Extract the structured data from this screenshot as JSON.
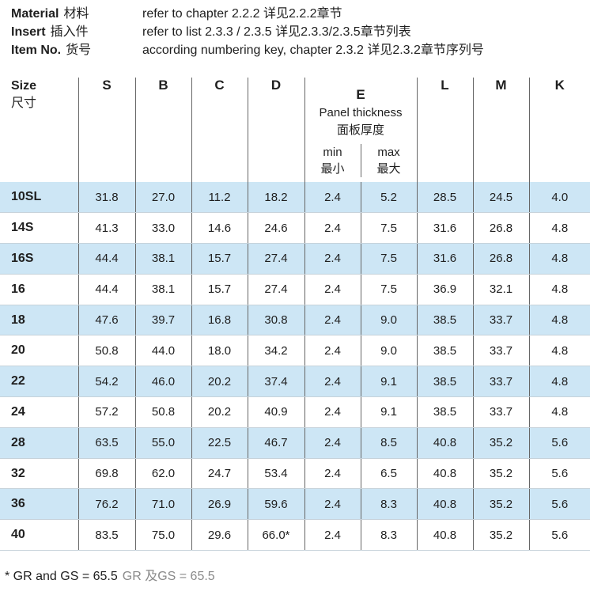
{
  "meta": [
    {
      "key": "Material",
      "key_cn": "材料",
      "value": "refer to chapter 2.2.2  详见2.2.2章节"
    },
    {
      "key": "Insert",
      "key_cn": "插入件",
      "value": "refer to list 2.3.3 / 2.3.5  详见2.3.3/2.3.5章节列表"
    },
    {
      "key": "Item No.",
      "key_cn": "货号",
      "value": "according numbering key, chapter 2.3.2  详见2.3.2章节序列号"
    }
  ],
  "table": {
    "size_header": "Size",
    "size_header_cn": "尺寸",
    "columns": [
      "S",
      "B",
      "C",
      "D"
    ],
    "e_header": "E",
    "e_sub": "Panel thickness",
    "e_sub_cn": "面板厚度",
    "e_min": "min",
    "e_min_cn": "最小",
    "e_max": "max",
    "e_max_cn": "最大",
    "columns_after": [
      "L",
      "M",
      "K"
    ],
    "rows": [
      [
        "10SL",
        "31.8",
        "27.0",
        "11.2",
        "18.2",
        "2.4",
        "5.2",
        "28.5",
        "24.5",
        "4.0"
      ],
      [
        "14S",
        "41.3",
        "33.0",
        "14.6",
        "24.6",
        "2.4",
        "7.5",
        "31.6",
        "26.8",
        "4.8"
      ],
      [
        "16S",
        "44.4",
        "38.1",
        "15.7",
        "27.4",
        "2.4",
        "7.5",
        "31.6",
        "26.8",
        "4.8"
      ],
      [
        "16",
        "44.4",
        "38.1",
        "15.7",
        "27.4",
        "2.4",
        "7.5",
        "36.9",
        "32.1",
        "4.8"
      ],
      [
        "18",
        "47.6",
        "39.7",
        "16.8",
        "30.8",
        "2.4",
        "9.0",
        "38.5",
        "33.7",
        "4.8"
      ],
      [
        "20",
        "50.8",
        "44.0",
        "18.0",
        "34.2",
        "2.4",
        "9.0",
        "38.5",
        "33.7",
        "4.8"
      ],
      [
        "22",
        "54.2",
        "46.0",
        "20.2",
        "37.4",
        "2.4",
        "9.1",
        "38.5",
        "33.7",
        "4.8"
      ],
      [
        "24",
        "57.2",
        "50.8",
        "20.2",
        "40.9",
        "2.4",
        "9.1",
        "38.5",
        "33.7",
        "4.8"
      ],
      [
        "28",
        "63.5",
        "55.0",
        "22.5",
        "46.7",
        "2.4",
        "8.5",
        "40.8",
        "35.2",
        "5.6"
      ],
      [
        "32",
        "69.8",
        "62.0",
        "24.7",
        "53.4",
        "2.4",
        "6.5",
        "40.8",
        "35.2",
        "5.6"
      ],
      [
        "36",
        "76.2",
        "71.0",
        "26.9",
        "59.6",
        "2.4",
        "8.3",
        "40.8",
        "35.2",
        "5.6"
      ],
      [
        "40",
        "83.5",
        "75.0",
        "29.6",
        "66.0*",
        "2.4",
        "8.3",
        "40.8",
        "35.2",
        "5.6"
      ]
    ]
  },
  "footnote": {
    "text": "* GR and GS = 65.5",
    "text_cn": "GR 及GS = 65.5"
  },
  "colors": {
    "row_alt": "#cde6f5",
    "rule": "#666666"
  }
}
